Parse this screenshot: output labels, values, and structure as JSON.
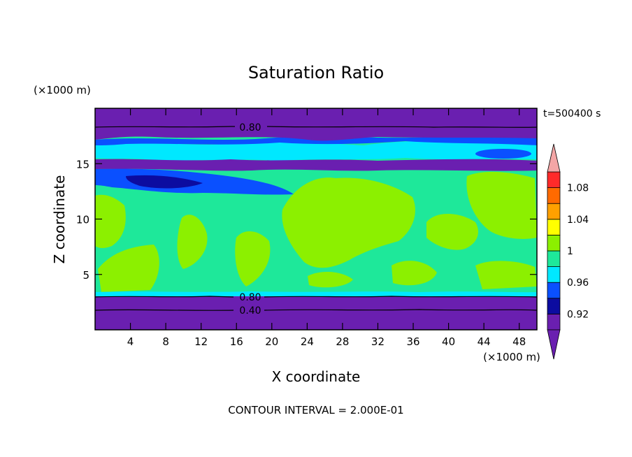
{
  "chart_data": {
    "type": "heatmap",
    "title": "Saturation Ratio",
    "time_label": "t=500400 s",
    "x_axis": {
      "label": "X coordinate",
      "unit": "(×1000 m)",
      "range": [
        0,
        50
      ],
      "ticks": [
        4,
        8,
        12,
        16,
        20,
        24,
        28,
        32,
        36,
        40,
        44,
        48
      ]
    },
    "y_axis": {
      "label": "Z coordinate",
      "unit": "(×1000 m)",
      "range": [
        0,
        20
      ],
      "ticks": [
        5,
        10,
        15
      ]
    },
    "colorbar": {
      "tick_labels": [
        "1.08",
        "1.04",
        "1",
        "0.96",
        "0.92"
      ],
      "tick_values": [
        1.08,
        1.04,
        1.0,
        0.96,
        0.92
      ],
      "levels": [
        {
          "min": 0.9,
          "max": 0.92,
          "color": "#6a1fb0"
        },
        {
          "min": 0.92,
          "max": 0.94,
          "color": "#0c0ca0"
        },
        {
          "min": 0.94,
          "max": 0.96,
          "color": "#0a50ff"
        },
        {
          "min": 0.96,
          "max": 0.98,
          "color": "#00e8ff"
        },
        {
          "min": 0.98,
          "max": 1.0,
          "color": "#1ee89a"
        },
        {
          "min": 1.0,
          "max": 1.02,
          "color": "#8cf000"
        },
        {
          "min": 1.02,
          "max": 1.04,
          "color": "#ffff00"
        },
        {
          "min": 1.04,
          "max": 1.06,
          "color": "#ffa000"
        },
        {
          "min": 1.06,
          "max": 1.08,
          "color": "#ff6a00"
        },
        {
          "min": 1.08,
          "max": 1.1,
          "color": "#ff2a2a"
        }
      ],
      "under_color": "#6a1fb0",
      "over_color": "#f4a6a6"
    },
    "contour_lines": [
      {
        "label": "0.80",
        "label_x": 18,
        "z": 18.4
      },
      {
        "label": "0.80",
        "label_x": 18,
        "z": 3.1
      },
      {
        "label": "0.40",
        "label_x": 18,
        "z": 1.8
      }
    ],
    "footer": "CONTOUR INTERVAL = 2.000E-01"
  }
}
